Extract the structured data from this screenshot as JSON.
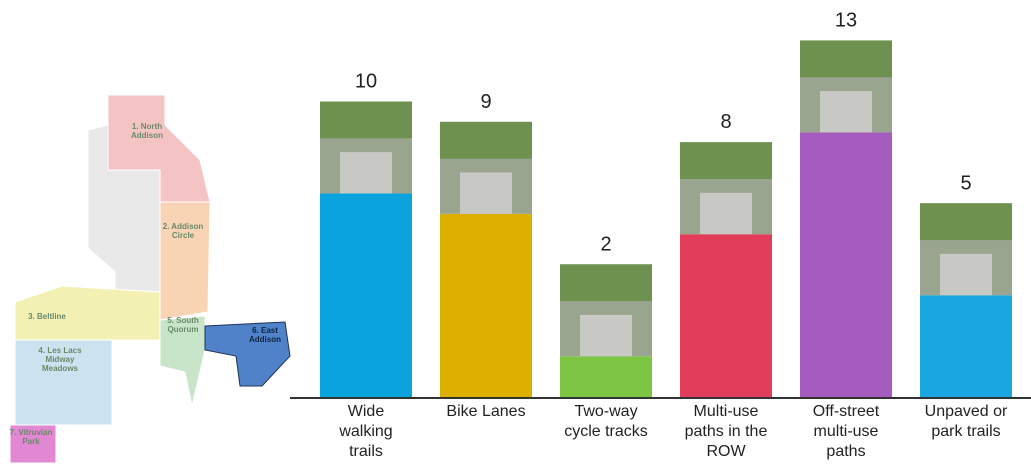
{
  "chart_data": {
    "type": "bar",
    "categories": [
      "Wide walking trails",
      "Bike Lanes",
      "Two-way cycle tracks",
      "Multi-use paths in the ROW",
      "Off-street multi-use paths",
      "Unpaved or park trails"
    ],
    "values": [
      10,
      9,
      2,
      8,
      13,
      5
    ],
    "colors": [
      "#0ba3de",
      "#ddb000",
      "#7cc644",
      "#e23e5c",
      "#a55cbe",
      "#1aa6df"
    ]
  },
  "map": {
    "districts": [
      "1. North Addison",
      "2. Addison Circle",
      "3. Beltline",
      "4. Les Lacs Midway Meadows",
      "5. South Quorum",
      "6. East Addison",
      "7. Vitruvian Park"
    ]
  }
}
